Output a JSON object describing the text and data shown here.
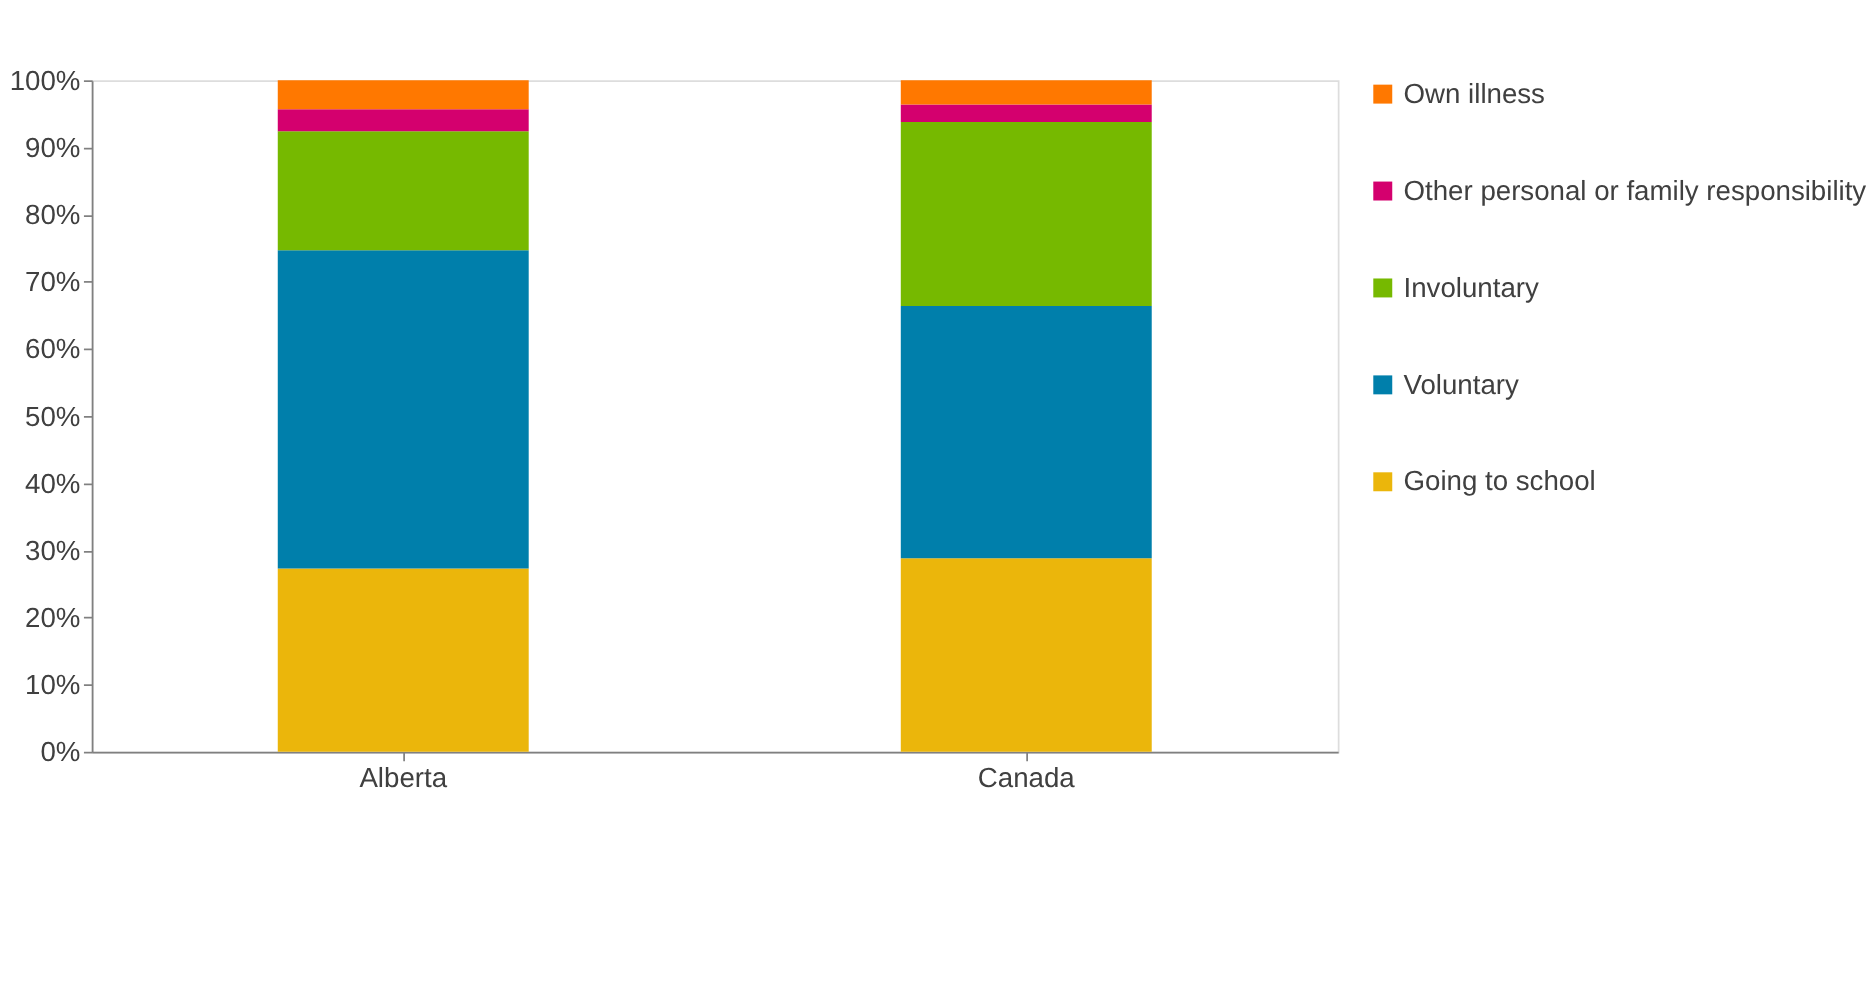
{
  "chart_data": {
    "type": "bar",
    "stacked": true,
    "categories": [
      "Alberta",
      "Canada"
    ],
    "series": [
      {
        "name": "Going to school",
        "color": "#ebb60b",
        "values": [
          27.3,
          28.8
        ]
      },
      {
        "name": "Voluntary",
        "color": "#007fab",
        "values": [
          47.4,
          37.6
        ]
      },
      {
        "name": "Involuntary",
        "color": "#76b900",
        "values": [
          17.7,
          27.4
        ]
      },
      {
        "name": "Other personal or family responsibility",
        "color": "#d4006e",
        "values": [
          3.3,
          2.6
        ]
      },
      {
        "name": "Own illness",
        "color": "#ff7800",
        "values": [
          4.3,
          3.6
        ]
      }
    ],
    "ylim": [
      0,
      100
    ],
    "yticks": [
      {
        "value": 0,
        "label": "0%"
      },
      {
        "value": 10,
        "label": "10%"
      },
      {
        "value": 20,
        "label": "20%"
      },
      {
        "value": 30,
        "label": "30%"
      },
      {
        "value": 40,
        "label": "40%"
      },
      {
        "value": 50,
        "label": "50%"
      },
      {
        "value": 60,
        "label": "60%"
      },
      {
        "value": 70,
        "label": "70%"
      },
      {
        "value": 80,
        "label": "80%"
      },
      {
        "value": 90,
        "label": "90%"
      },
      {
        "value": 100,
        "label": "100%"
      }
    ],
    "grid": false,
    "legend": "right"
  }
}
